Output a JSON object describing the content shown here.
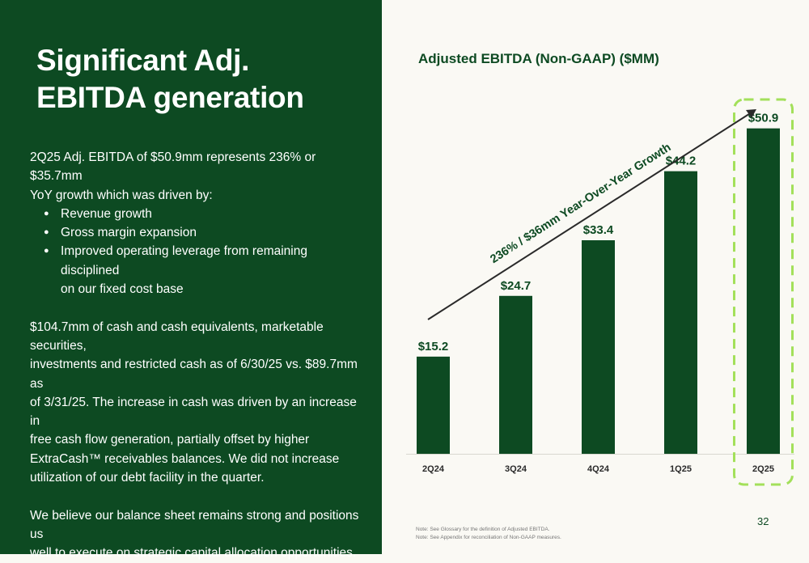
{
  "left": {
    "title_line1": "Significant Adj.",
    "title_line2": "EBITDA generation",
    "para1_line1": "2Q25 Adj. EBITDA of $50.9mm represents 236% or $35.7mm",
    "para1_line2": "YoY growth which was driven by:",
    "bullets": [
      "Revenue growth",
      "Gross margin expansion",
      "Improved operating leverage from remaining disciplined",
      "on our fixed cost base"
    ],
    "para2": [
      "$104.7mm of cash and cash equivalents, marketable securities,",
      "investments and restricted cash as of 6/30/25 vs. $89.7mm as",
      "of 3/31/25. The increase in cash was driven by an increase in",
      "free cash flow generation, partially offset by higher",
      "ExtraCash™ receivables balances. We did not increase",
      "utilization of our debt facility in the quarter."
    ],
    "para3": [
      "We believe our balance sheet remains strong and positions us",
      "well to execute on strategic capital allocation opportunities."
    ]
  },
  "chart_data": {
    "type": "bar",
    "title": "Adjusted EBITDA (Non-GAAP) ($MM)",
    "categories": [
      "2Q24",
      "3Q24",
      "4Q24",
      "1Q25",
      "2Q25"
    ],
    "values": [
      15.2,
      24.7,
      33.4,
      44.2,
      50.9
    ],
    "data_labels": [
      "$15.2",
      "$24.7",
      "$33.4",
      "$44.2",
      "$50.9"
    ],
    "annotation": "236% / $36mm Year-Over-Year Growth",
    "highlighted_category": "2Q25",
    "ylim": [
      0,
      52
    ],
    "grid": false,
    "bar_color": "#0d4a22",
    "highlight_color": "#a3e05a"
  },
  "notes": [
    "Note:   See Glossary for the definition of Adjusted EBITDA.",
    "Note:   See Appendix for reconciliation of Non-GAAP measures."
  ],
  "page_number": "32"
}
